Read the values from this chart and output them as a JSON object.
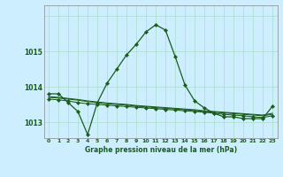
{
  "title": "Graphe pression niveau de la mer (hPa)",
  "background_color": "#cceeff",
  "line_color": "#1a5c1a",
  "grid_color": "#aaddcc",
  "x_ticks": [
    0,
    1,
    2,
    3,
    4,
    5,
    6,
    7,
    8,
    9,
    10,
    11,
    12,
    13,
    14,
    15,
    16,
    17,
    18,
    19,
    20,
    21,
    22,
    23
  ],
  "ylim": [
    1012.55,
    1016.3
  ],
  "yticks": [
    1013,
    1014,
    1015,
    1016
  ],
  "ytick_labels": [
    "1013",
    "1014",
    "1015",
    ""
  ],
  "series1": [
    1013.8,
    1013.8,
    1013.55,
    1013.3,
    1012.65,
    1013.55,
    1014.1,
    1014.5,
    1014.9,
    1015.2,
    1015.55,
    1015.75,
    1015.6,
    1014.85,
    1014.05,
    1013.6,
    1013.4,
    1013.25,
    1013.15,
    1013.15,
    1013.1,
    1013.1,
    1013.1,
    1013.45
  ],
  "series2": [
    1013.65,
    1013.63,
    1013.6,
    1013.55,
    1013.52,
    1013.5,
    1013.48,
    1013.46,
    1013.44,
    1013.42,
    1013.4,
    1013.38,
    1013.36,
    1013.34,
    1013.32,
    1013.3,
    1013.28,
    1013.25,
    1013.22,
    1013.2,
    1013.18,
    1013.15,
    1013.13,
    1013.18
  ],
  "series3": [
    1013.7,
    1013.68,
    1013.65,
    1013.62,
    1013.58,
    1013.55,
    1013.52,
    1013.5,
    1013.48,
    1013.45,
    1013.43,
    1013.41,
    1013.39,
    1013.37,
    1013.35,
    1013.33,
    1013.3,
    1013.28,
    1013.26,
    1013.24,
    1013.22,
    1013.2,
    1013.18,
    1013.22
  ],
  "series4": [
    1013.72,
    1013.7,
    1013.67,
    1013.64,
    1013.6,
    1013.57,
    1013.54,
    1013.52,
    1013.5,
    1013.47,
    1013.45,
    1013.43,
    1013.41,
    1013.39,
    1013.37,
    1013.35,
    1013.32,
    1013.3,
    1013.28,
    1013.26,
    1013.24,
    1013.22,
    1013.2,
    1013.25
  ]
}
